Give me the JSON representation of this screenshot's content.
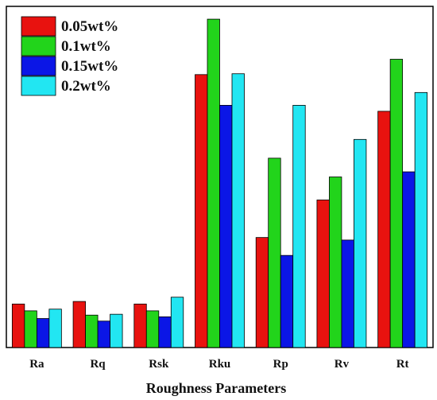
{
  "chart_data": {
    "type": "bar",
    "categories": [
      "Ra",
      "Rq",
      "Rsk",
      "Rku",
      "Rp",
      "Rv",
      "Rt"
    ],
    "series": [
      {
        "name": "0.05wt%",
        "color": "#e8120f",
        "values": [
          51,
          54,
          51,
          320,
          129,
          173,
          277
        ]
      },
      {
        "name": "0.1wt%",
        "color": "#22d41b",
        "values": [
          43,
          38,
          43,
          385,
          222,
          200,
          338
        ]
      },
      {
        "name": "0.15wt%",
        "color": "#0b16e6",
        "values": [
          34,
          31,
          36,
          284,
          108,
          126,
          206
        ]
      },
      {
        "name": "0.2wt%",
        "color": "#22e6f2",
        "values": [
          45,
          39,
          59,
          321,
          284,
          244,
          299
        ]
      }
    ],
    "title": "",
    "xlabel": "Roughness Parameters",
    "ylabel": "",
    "ylim": [
      0,
      400
    ],
    "grid": false,
    "legend_position": "top-left"
  }
}
